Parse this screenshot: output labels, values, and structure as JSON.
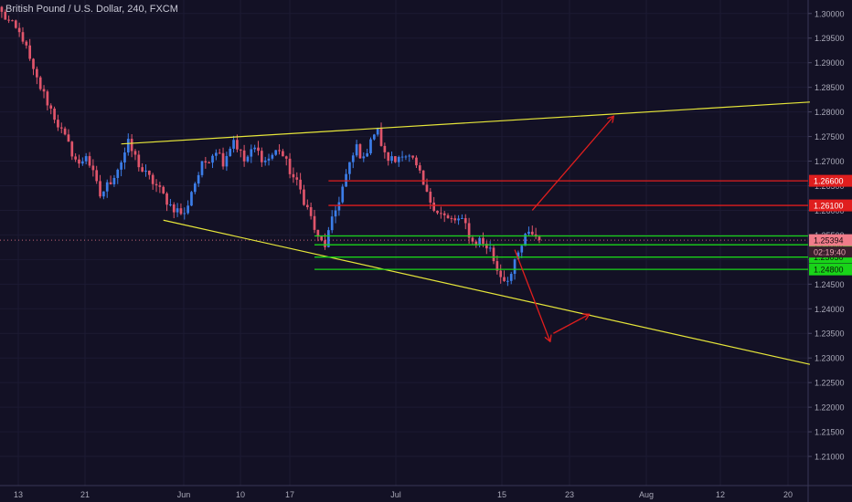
{
  "window": {
    "title": "British Pound / U.S. Dollar, 240, FXCM"
  },
  "colors": {
    "background": "#131125",
    "grid": "#1c1a33",
    "axis_text": "#a9a9b8",
    "candle_up": "#3c7de8",
    "candle_down": "#e0556b",
    "trend_line": "#e6e63a",
    "resistance": "#e01e1e",
    "support": "#19d419",
    "arrow": "#e01e1e",
    "last_price_badge": "#f07c8a",
    "countdown_badge": "#3a1e2c"
  },
  "chart_data": {
    "type": "candlestick",
    "symbol": "British Pound / U.S. Dollar",
    "interval": "240",
    "source": "FXCM",
    "ylim": [
      1.205,
      1.302
    ],
    "y_ticks": [
      "1.30000",
      "1.29500",
      "1.29000",
      "1.28500",
      "1.28000",
      "1.27500",
      "1.27000",
      "1.26500",
      "1.26000",
      "1.25500",
      "1.25000",
      "1.24500",
      "1.24000",
      "1.23500",
      "1.23000",
      "1.22500",
      "1.22000",
      "1.21500",
      "1.21000"
    ],
    "x_ticks": [
      "13",
      "21",
      "Jun",
      "10",
      "17",
      "Jul",
      "15",
      "23",
      "Aug",
      "12",
      "20"
    ],
    "path": [
      [
        0,
        1.3
      ],
      [
        6,
        1.295
      ],
      [
        9,
        1.288
      ],
      [
        13,
        1.282
      ],
      [
        17,
        1.276
      ],
      [
        22,
        1.269
      ],
      [
        24,
        1.2715
      ],
      [
        28,
        1.263
      ],
      [
        31,
        1.266
      ],
      [
        34,
        1.27
      ],
      [
        36,
        1.2735
      ],
      [
        40,
        1.268
      ],
      [
        44,
        1.265
      ],
      [
        48,
        1.261
      ],
      [
        52,
        1.259
      ],
      [
        54,
        1.264
      ],
      [
        57,
        1.269
      ],
      [
        61,
        1.2725
      ],
      [
        63,
        1.27
      ],
      [
        66,
        1.2745
      ],
      [
        69,
        1.27
      ],
      [
        72,
        1.2725
      ],
      [
        75,
        1.27
      ],
      [
        79,
        1.2725
      ],
      [
        82,
        1.268
      ],
      [
        85,
        1.264
      ],
      [
        88,
        1.2585
      ],
      [
        90,
        1.254
      ],
      [
        92,
        1.253
      ],
      [
        95,
        1.26
      ],
      [
        98,
        1.267
      ],
      [
        101,
        1.273
      ],
      [
        103,
        1.27
      ],
      [
        105,
        1.275
      ],
      [
        107,
        1.276
      ],
      [
        109,
        1.271
      ],
      [
        112,
        1.27
      ],
      [
        114,
        1.272
      ],
      [
        117,
        1.27
      ],
      [
        119,
        1.267
      ],
      [
        121,
        1.263
      ],
      [
        124,
        1.26
      ],
      [
        127,
        1.258
      ],
      [
        130,
        1.258
      ],
      [
        132,
        1.257
      ],
      [
        134,
        1.2535
      ],
      [
        136,
        1.254
      ],
      [
        139,
        1.252
      ],
      [
        141,
        1.248
      ],
      [
        143,
        1.246
      ],
      [
        145,
        1.247
      ],
      [
        147,
        1.251
      ],
      [
        149,
        1.2545
      ],
      [
        151,
        1.2555
      ],
      [
        153,
        1.2539
      ]
    ],
    "trend_lines": [
      {
        "x1": 34,
        "y1": 1.2735,
        "x2": 230,
        "y2": 1.282
      },
      {
        "x1": 46,
        "y1": 1.258,
        "x2": 230,
        "y2": 1.2287
      }
    ],
    "horizontal_levels": [
      {
        "price": 1.266,
        "label": "1.26600",
        "kind": "resistance",
        "x_start": 93
      },
      {
        "price": 1.261,
        "label": "1.26100",
        "kind": "resistance",
        "x_start": 93
      },
      {
        "price": 1.253,
        "label": "1.25300",
        "kind": "support",
        "x_start": 89
      },
      {
        "price": 1.2505,
        "label": "1.25050",
        "kind": "support",
        "x_start": 89
      },
      {
        "price": 1.248,
        "label": "1.24800",
        "kind": "support",
        "x_start": 89
      }
    ],
    "support_line_extra": 1.2548,
    "arrows": [
      {
        "x1": 151,
        "y1": 1.26,
        "x2": 174,
        "y2": 1.279
      },
      {
        "x1": 146,
        "y1": 1.252,
        "x2": 156,
        "y2": 1.2335
      },
      {
        "x1": 157,
        "y1": 1.235,
        "x2": 167,
        "y2": 1.2388
      }
    ],
    "last_price": {
      "value": 1.25394,
      "label": "1.25394",
      "countdown": "02:19:40"
    }
  }
}
